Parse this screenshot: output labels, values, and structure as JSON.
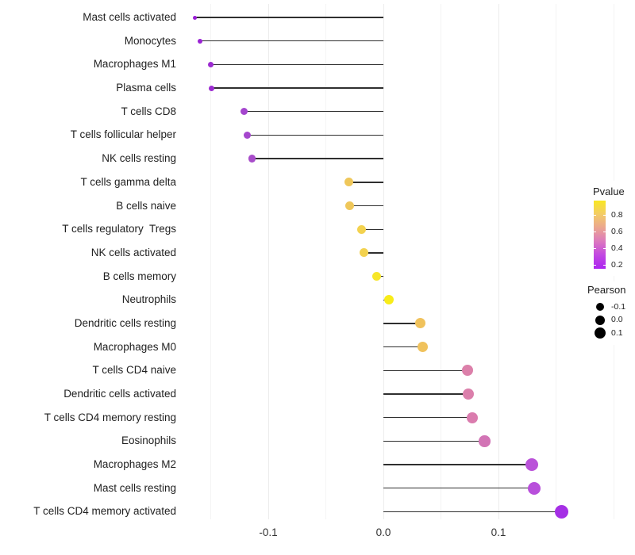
{
  "chart_data": {
    "type": "scatter",
    "variant": "lollipop",
    "title": "",
    "xlabel": "",
    "ylabel": "",
    "x_axis": {
      "tick_labels": [
        "-0.1",
        "0.0",
        "0.1"
      ],
      "tick_values": [
        -0.1,
        0.0,
        0.1
      ],
      "gridline_values": [
        -0.15,
        -0.1,
        -0.05,
        0.0,
        0.05,
        0.1,
        0.15,
        0.2
      ],
      "xlim": [
        -0.175,
        0.175
      ],
      "grid": "vertical-only"
    },
    "points": [
      {
        "label": "Mast cells activated",
        "pearson": -0.164,
        "color": "#9A1ED6",
        "size": 5
      },
      {
        "label": "Monocytes",
        "pearson": -0.159,
        "color": "#9A22D4",
        "size": 6
      },
      {
        "label": "Macrophages M1",
        "pearson": -0.15,
        "color": "#9C2BD1",
        "size": 7
      },
      {
        "label": "Plasma cells",
        "pearson": -0.149,
        "color": "#9C2BD1",
        "size": 7
      },
      {
        "label": "T cells CD8",
        "pearson": -0.121,
        "color": "#A446CE",
        "size": 9
      },
      {
        "label": "T cells follicular helper",
        "pearson": -0.118,
        "color": "#A546CD",
        "size": 9
      },
      {
        "label": "NK cells resting",
        "pearson": -0.114,
        "color": "#A84CCA",
        "size": 9.5
      },
      {
        "label": "T cells gamma delta",
        "pearson": -0.03,
        "color": "#EFC75A",
        "size": 11
      },
      {
        "label": "B cells naive",
        "pearson": -0.029,
        "color": "#EFC75A",
        "size": 11
      },
      {
        "label": "T cells regulatory  Tregs",
        "pearson": -0.019,
        "color": "#F3D24F",
        "size": 11
      },
      {
        "label": "NK cells activated",
        "pearson": -0.017,
        "color": "#F3D24F",
        "size": 11
      },
      {
        "label": "B cells memory",
        "pearson": -0.006,
        "color": "#F7E629",
        "size": 11.5
      },
      {
        "label": "Neutrophils",
        "pearson": 0.005,
        "color": "#F8EC19",
        "size": 12
      },
      {
        "label": "Dendritic cells resting",
        "pearson": 0.032,
        "color": "#F0C25C",
        "size": 13
      },
      {
        "label": "Macrophages M0",
        "pearson": 0.034,
        "color": "#F0C25C",
        "size": 13
      },
      {
        "label": "T cells CD4 naive",
        "pearson": 0.073,
        "color": "#DC80AA",
        "size": 14
      },
      {
        "label": "Dendritic cells activated",
        "pearson": 0.074,
        "color": "#DB7FAB",
        "size": 14
      },
      {
        "label": "T cells CD4 memory resting",
        "pearson": 0.077,
        "color": "#DA7CAE",
        "size": 14
      },
      {
        "label": "Eosinophils",
        "pearson": 0.088,
        "color": "#D274B5",
        "size": 14.5
      },
      {
        "label": "Macrophages M2",
        "pearson": 0.129,
        "color": "#BA52D9",
        "size": 16
      },
      {
        "label": "Mast cells resting",
        "pearson": 0.131,
        "color": "#B84FDB",
        "size": 16
      },
      {
        "label": "T cells CD4 memory activated",
        "pearson": 0.155,
        "color": "#A52FE5",
        "size": 17
      }
    ],
    "legend_pvalue": {
      "title": "Pvalue",
      "tick_labels": [
        "0.8",
        "0.6",
        "0.4",
        "0.2"
      ],
      "gradient_top_to_bottom": [
        "#F9E721",
        "#F3CC66",
        "#EBA590",
        "#DC78BF",
        "#C248E2",
        "#AC24F0"
      ]
    },
    "legend_pearson": {
      "title": "Pearson",
      "items": [
        {
          "label": "-0.1",
          "size": 10
        },
        {
          "label": "0.0",
          "size": 12
        },
        {
          "label": "0.1",
          "size": 14
        }
      ]
    }
  },
  "colors": {
    "background": "#ffffff",
    "stem": "#2f2f2f",
    "grid_major": "#ececec",
    "grid_minor": "#f4f4f4",
    "category_label": "#1f1f1f",
    "axis_tick_label": "#333333",
    "legend_dot": "#000000"
  }
}
